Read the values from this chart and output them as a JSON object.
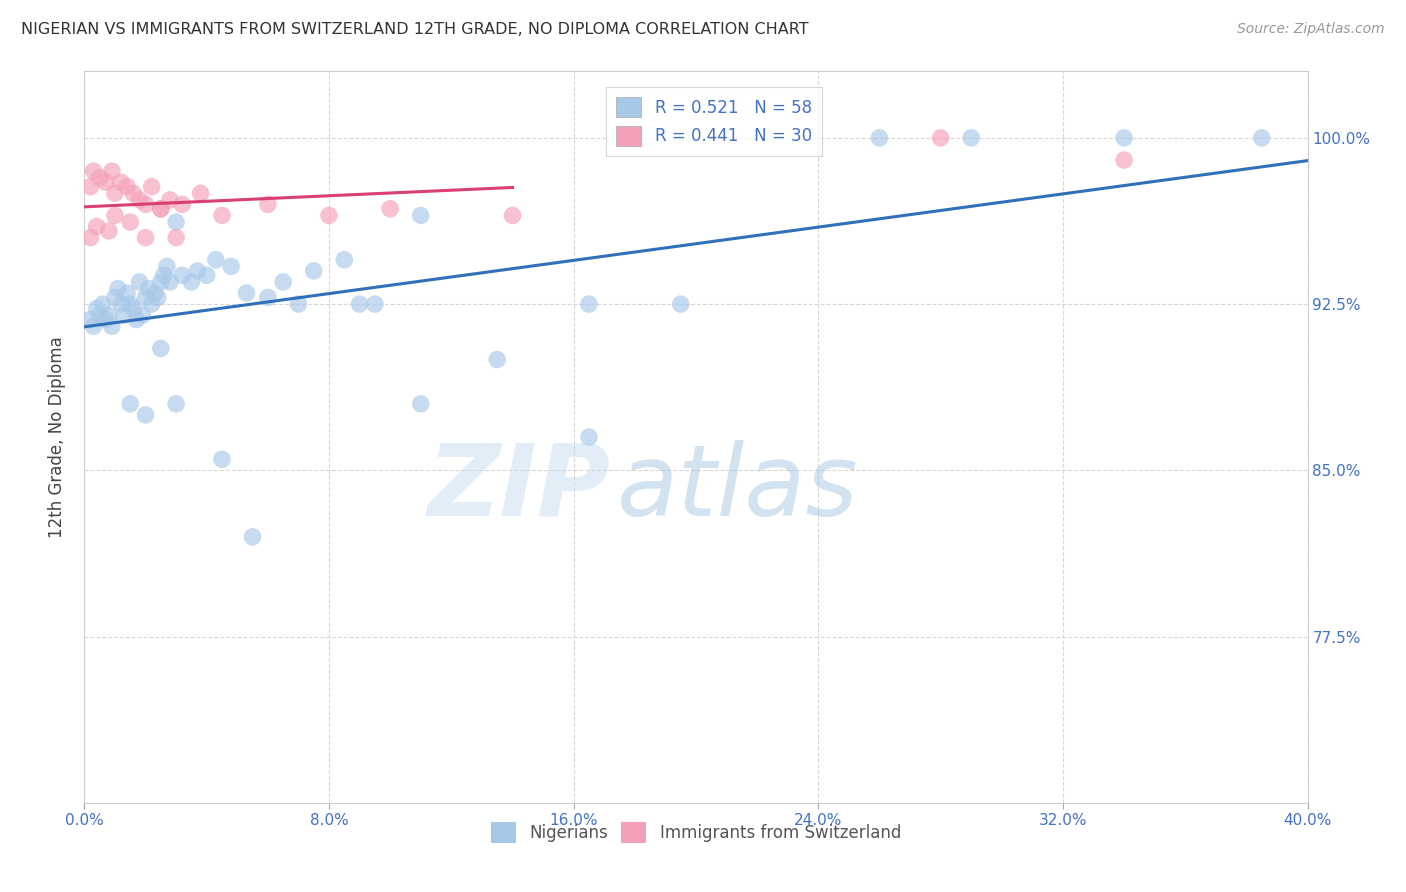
{
  "title": "NIGERIAN VS IMMIGRANTS FROM SWITZERLAND 12TH GRADE, NO DIPLOMA CORRELATION CHART",
  "source": "Source: ZipAtlas.com",
  "ylabel_label": "12th Grade, No Diploma",
  "yticks": [
    77.5,
    85.0,
    92.5,
    100.0
  ],
  "xticks": [
    0.0,
    8.0,
    16.0,
    24.0,
    32.0,
    40.0
  ],
  "xlim": [
    0.0,
    40.0
  ],
  "ylim": [
    70.0,
    103.0
  ],
  "blue_color": "#a8c8e8",
  "pink_color": "#f4a0b8",
  "blue_line_color": "#3070b8",
  "pink_line_color": "#d84070",
  "nigerians_x": [
    0.2,
    0.3,
    0.4,
    0.5,
    0.6,
    0.7,
    0.8,
    0.9,
    1.0,
    1.1,
    1.2,
    1.3,
    1.4,
    1.5,
    1.6,
    1.7,
    1.8,
    1.9,
    2.0,
    2.1,
    2.2,
    2.3,
    2.4,
    2.5,
    2.6,
    2.7,
    2.8,
    3.0,
    3.2,
    3.5,
    3.7,
    4.0,
    4.3,
    4.8,
    5.3,
    6.0,
    6.5,
    7.5,
    8.5,
    9.5,
    11.0,
    13.5,
    16.5,
    19.5,
    26.0,
    29.0,
    34.0,
    38.5
  ],
  "nigerians_y": [
    91.8,
    91.5,
    92.3,
    92.0,
    92.5,
    91.8,
    92.0,
    91.5,
    92.8,
    93.2,
    92.5,
    92.0,
    93.0,
    92.5,
    92.3,
    91.8,
    93.5,
    92.0,
    92.8,
    93.2,
    92.5,
    93.0,
    92.8,
    93.5,
    93.8,
    94.2,
    93.5,
    96.2,
    93.8,
    93.5,
    94.0,
    93.8,
    94.5,
    94.2,
    93.0,
    92.8,
    93.5,
    94.0,
    94.5,
    92.5,
    96.5,
    90.0,
    86.5,
    92.5,
    100.0,
    100.0,
    100.0,
    100.0
  ],
  "nigerians_x2": [
    1.5,
    2.0,
    2.5,
    3.0,
    4.5,
    5.5,
    7.0,
    9.0,
    11.0,
    16.5
  ],
  "nigerians_y2": [
    88.0,
    87.5,
    90.5,
    88.0,
    85.5,
    82.0,
    92.5,
    92.5,
    88.0,
    92.5
  ],
  "swiss_x": [
    0.2,
    0.3,
    0.5,
    0.7,
    0.9,
    1.0,
    1.2,
    1.4,
    1.6,
    1.8,
    2.0,
    2.2,
    2.5,
    2.8,
    3.2,
    3.8,
    4.5,
    6.0,
    8.0,
    10.0,
    14.0,
    28.0,
    34.0
  ],
  "swiss_y": [
    97.8,
    98.5,
    98.2,
    98.0,
    98.5,
    97.5,
    98.0,
    97.8,
    97.5,
    97.2,
    97.0,
    97.8,
    96.8,
    97.2,
    97.0,
    97.5,
    96.5,
    97.0,
    96.5,
    96.8,
    96.5,
    100.0,
    99.0
  ],
  "swiss_x2": [
    0.2,
    0.4,
    0.8,
    1.0,
    1.5,
    2.0,
    2.5,
    3.0
  ],
  "swiss_y2": [
    95.5,
    96.0,
    95.8,
    96.5,
    96.2,
    95.5,
    96.8,
    95.5
  ],
  "watermark_zip": "ZIP",
  "watermark_atlas": "atlas",
  "background_color": "#ffffff",
  "grid_color": "#d8d8d8"
}
